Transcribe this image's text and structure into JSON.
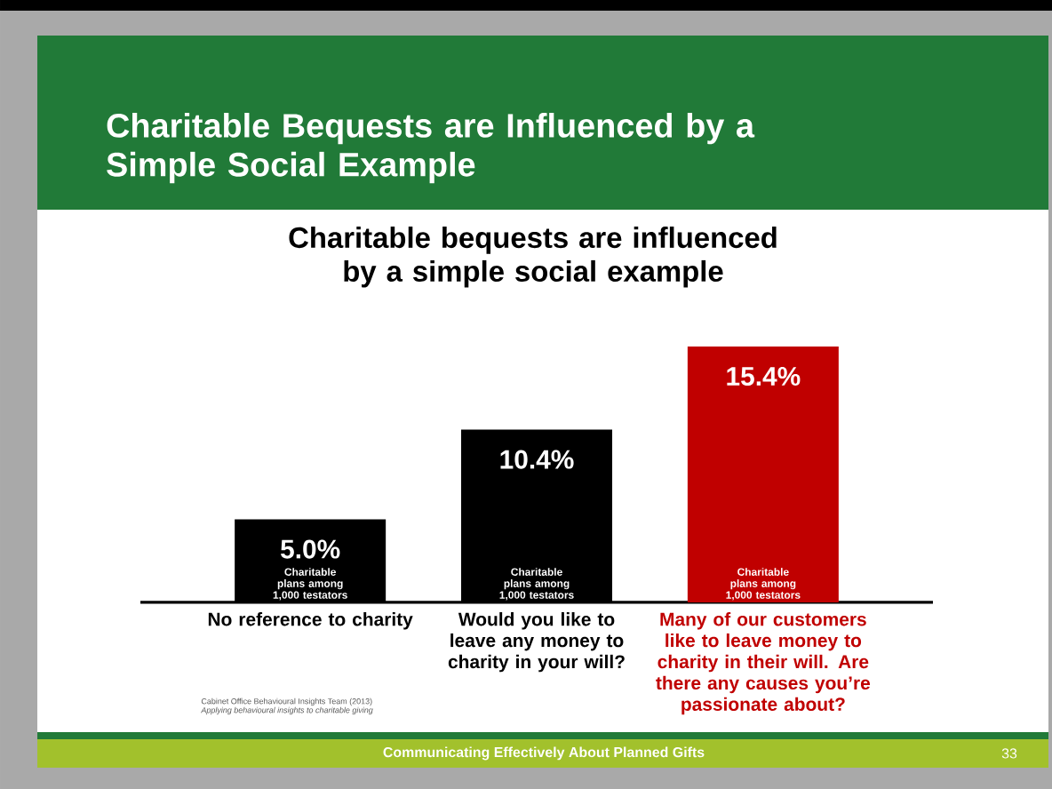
{
  "chart_data": {
    "type": "bar",
    "title": "Charitable Bequests are Influenced by a Simple Social Example",
    "subtitle": "Charitable bequests are influenced by a simple social example",
    "categories": [
      "No reference to charity",
      "Would you like to leave any money to charity in your will?",
      "Many of our customers like to leave money to charity in their will. Are there any causes you’re passionate about?"
    ],
    "values": [
      5.0,
      10.4,
      15.4
    ],
    "value_labels": [
      "5.0%",
      "10.4%",
      "15.4%"
    ],
    "colors": [
      "#000000",
      "#000000",
      "#c00000"
    ],
    "annotations": [
      {
        "text": "Charitable plans among 1,000 testators",
        "x": "No reference to charity",
        "y": 0
      },
      {
        "text": "Charitable plans among 1,000 testators",
        "x": "Would you like to leave any money to charity in your will?",
        "y": 0
      },
      {
        "text": "Charitable plans among 1,000 testators",
        "x": "Many of our customers like to leave money to charity in their will. Are there any causes you’re passionate about?",
        "y": 0
      },
      "Cabinet Office Behavioural Insights Team (2013)",
      "Applying behavioural insights to charitable giving",
      "Communicating Effectively About Planned Gifts",
      "33"
    ]
  }
}
